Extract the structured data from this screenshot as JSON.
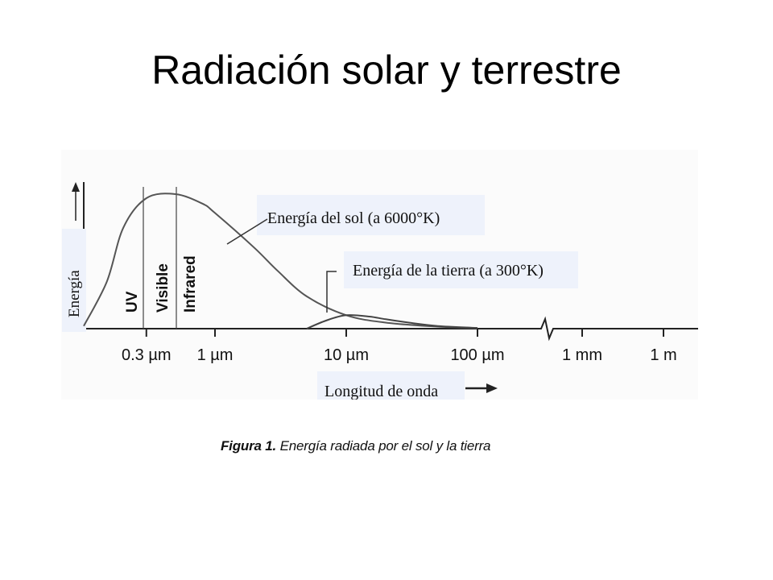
{
  "slide": {
    "title": "Radiación solar y terrestre"
  },
  "caption": {
    "label": "Figura 1.",
    "text": "Energía radiada por el sol y la tierra"
  },
  "colors": {
    "curve": "#555555",
    "axis": "#222222",
    "label_box": "#eef2fb",
    "panel_bg": "#fbfbfb"
  },
  "chart_data": {
    "type": "line",
    "title": "",
    "xlabel": "Longitud de onda",
    "ylabel": "Energía",
    "x_scale": "log",
    "x_unit": "µm",
    "x_ticks": [
      "0.3 µm",
      "1 µm",
      "10 µm",
      "100 µm",
      "1 mm",
      "1 m"
    ],
    "regions": [
      "UV",
      "Visible",
      "Infrared"
    ],
    "series": [
      {
        "name": "Energía del sol (a 6000°K)",
        "x": [
          0.1,
          0.15,
          0.2,
          0.3,
          0.5,
          0.8,
          1,
          2,
          3,
          5,
          10,
          20,
          50,
          100
        ],
        "y": [
          0.02,
          0.35,
          0.75,
          0.97,
          1.0,
          0.93,
          0.86,
          0.6,
          0.43,
          0.24,
          0.1,
          0.045,
          0.015,
          0.005
        ]
      },
      {
        "name": "Energía de la tierra (a 300°K)",
        "x": [
          5,
          7,
          10,
          15,
          20,
          30,
          50,
          100
        ],
        "y": [
          0.0,
          0.06,
          0.1,
          0.09,
          0.07,
          0.045,
          0.02,
          0.005
        ]
      }
    ],
    "grid": false,
    "legend": "none"
  }
}
